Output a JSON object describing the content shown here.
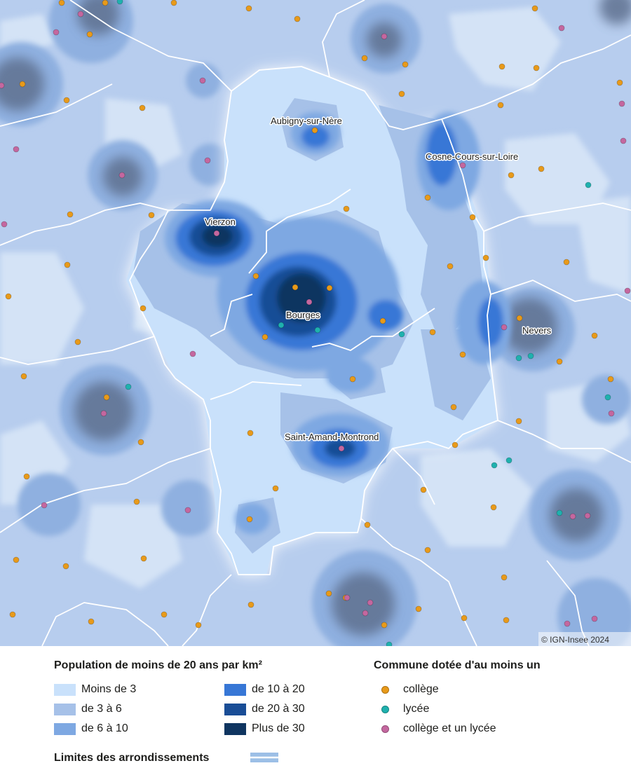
{
  "colors": {
    "class_1": "#c9e1fb",
    "class_2": "#a6c1e8",
    "class_3": "#7ea8e2",
    "class_4": "#3777d6",
    "class_5": "#194d96",
    "class_6": "#0f3560",
    "college": "#e89a1a",
    "lycee": "#1fb1ae",
    "college_lycee": "#c4679f",
    "boundary": "#ffffff",
    "legend_boundary": "#9cbfe6"
  },
  "map": {
    "copyright": "© IGN-Insee 2024",
    "cities": [
      {
        "id": "aubigny",
        "name": "Aubigny-sur-Nère"
      },
      {
        "id": "cosne",
        "name": "Cosne-Cours-sur-Loire"
      },
      {
        "id": "vierzon",
        "name": "Vierzon"
      },
      {
        "id": "bourges",
        "name": "Bourges"
      },
      {
        "id": "nevers",
        "name": "Nevers"
      },
      {
        "id": "saint-amand",
        "name": "Saint-Amand-Montrond"
      }
    ]
  },
  "legend": {
    "density_title": "Population de moins de 20 ans par km²",
    "density_classes": [
      {
        "label": "Moins de 3",
        "color": "#c9e1fb"
      },
      {
        "label": "de 3 à 6",
        "color": "#a6c1e8"
      },
      {
        "label": "de 6 à 10",
        "color": "#7ea8e2"
      },
      {
        "label": "de 10 à 20",
        "color": "#3777d6"
      },
      {
        "label": "de 20 à 30",
        "color": "#194d96"
      },
      {
        "label": "Plus de 30",
        "color": "#0f3560"
      }
    ],
    "school_title": "Commune dotée d'au moins un",
    "school_types": [
      {
        "label": "collège",
        "color": "#e89a1a"
      },
      {
        "label": "lycée",
        "color": "#1fb1ae"
      },
      {
        "label": "collège et un lycée",
        "color": "#c4679f"
      }
    ],
    "boundary_label": "Limites des arrondissements"
  }
}
